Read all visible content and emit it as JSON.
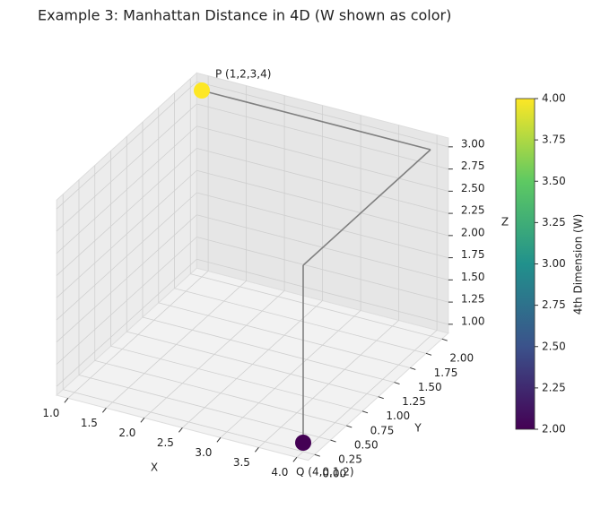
{
  "chart_data": {
    "type": "scatter3d",
    "title": "Example 3: Manhattan Distance in 4D (W shown as color)",
    "xlabel": "X",
    "ylabel": "Y",
    "zlabel": "Z",
    "xlim": [
      0.85,
      4.15
    ],
    "ylim": [
      -0.1,
      2.1
    ],
    "zlim": [
      0.9,
      3.1
    ],
    "xticks": [
      {
        "value": 1,
        "label": "1.0"
      },
      {
        "value": 1.5,
        "label": "1.5"
      },
      {
        "value": 2,
        "label": "2.0"
      },
      {
        "value": 2.5,
        "label": "2.5"
      },
      {
        "value": 3,
        "label": "3.0"
      },
      {
        "value": 3.5,
        "label": "3.5"
      },
      {
        "value": 4,
        "label": "4.0"
      }
    ],
    "yticks": [
      {
        "value": 0,
        "label": "0.00"
      },
      {
        "value": 0.25,
        "label": "0.25"
      },
      {
        "value": 0.5,
        "label": "0.50"
      },
      {
        "value": 0.75,
        "label": "0.75"
      },
      {
        "value": 1,
        "label": "1.00"
      },
      {
        "value": 1.25,
        "label": "1.25"
      },
      {
        "value": 1.5,
        "label": "1.50"
      },
      {
        "value": 1.75,
        "label": "1.75"
      },
      {
        "value": 2,
        "label": "2.00"
      }
    ],
    "zticks": [
      {
        "value": 1,
        "label": "1.00"
      },
      {
        "value": 1.25,
        "label": "1.25"
      },
      {
        "value": 1.5,
        "label": "1.50"
      },
      {
        "value": 1.75,
        "label": "1.75"
      },
      {
        "value": 2,
        "label": "2.00"
      },
      {
        "value": 2.25,
        "label": "2.25"
      },
      {
        "value": 2.5,
        "label": "2.50"
      },
      {
        "value": 2.75,
        "label": "2.75"
      },
      {
        "value": 3,
        "label": "3.00"
      }
    ],
    "path": {
      "x": [
        1,
        4,
        4,
        4
      ],
      "y": [
        2,
        2,
        0,
        0
      ],
      "z": [
        3,
        3,
        3,
        1
      ],
      "color": "#808080"
    },
    "points": {
      "x": [
        1,
        4
      ],
      "y": [
        2,
        0
      ],
      "z": [
        3,
        1
      ],
      "w": [
        4,
        2
      ],
      "labels": [
        "P (1,2,3,4)",
        "Q (4,0,1,2)"
      ]
    },
    "colormap": "viridis",
    "colorbar_label": "4th Dimension (W)",
    "clim": [
      2,
      4
    ],
    "cticks": [
      {
        "value": 2,
        "label": "2.00"
      },
      {
        "value": 2.25,
        "label": "2.25"
      },
      {
        "value": 2.5,
        "label": "2.50"
      },
      {
        "value": 2.75,
        "label": "2.75"
      },
      {
        "value": 3,
        "label": "3.00"
      },
      {
        "value": 3.25,
        "label": "3.25"
      },
      {
        "value": 3.5,
        "label": "3.50"
      },
      {
        "value": 3.75,
        "label": "3.75"
      },
      {
        "value": 4,
        "label": "4.00"
      }
    ],
    "grid": true
  }
}
